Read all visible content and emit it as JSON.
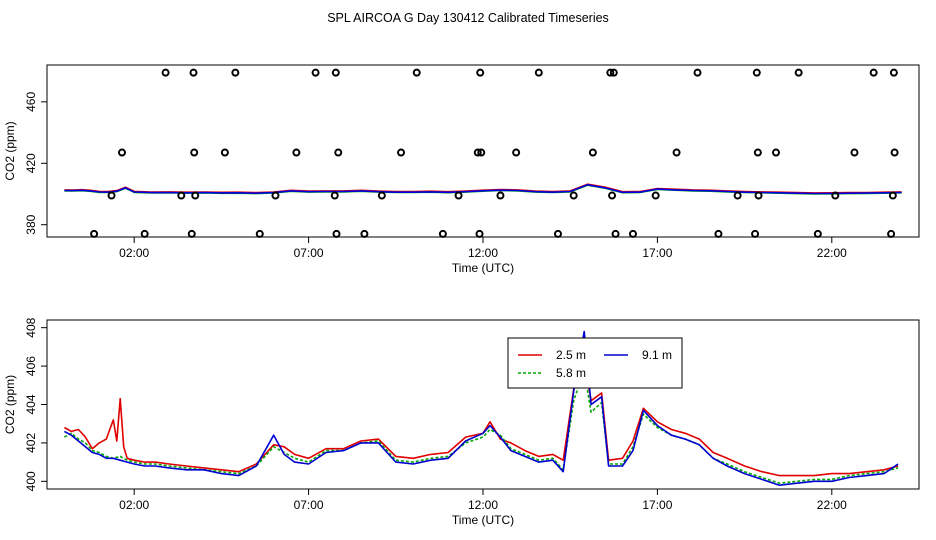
{
  "title": "SPL AIRCOA G  Day 130412  Calibrated Timeseries",
  "chart_data": [
    {
      "type": "scatter",
      "title": "",
      "xlabel": "Time (UTC)",
      "ylabel": "CO2 (ppm)",
      "xlim": [
        -0.5,
        24.5
      ],
      "ylim": [
        372,
        484
      ],
      "xticks": [
        2,
        7,
        12,
        17,
        22
      ],
      "xtick_labels": [
        "02:00",
        "07:00",
        "12:00",
        "17:00",
        "22:00"
      ],
      "yticks": [
        380,
        420,
        460
      ],
      "ytick_labels": [
        "380",
        "420",
        "460"
      ],
      "calibration_points": {
        "x": [
          0.85,
          1.35,
          1.65,
          2.3,
          2.9,
          3.35,
          3.65,
          3.7,
          3.72,
          3.75,
          4.6,
          4.9,
          5.6,
          6.05,
          6.65,
          7.2,
          7.75,
          7.78,
          7.8,
          7.85,
          8.6,
          9.1,
          9.65,
          10.1,
          10.85,
          11.3,
          11.85,
          11.9,
          11.92,
          11.95,
          12.5,
          12.95,
          13.6,
          14.15,
          14.6,
          15.15,
          15.65,
          15.7,
          15.75,
          15.8,
          16.3,
          16.95,
          17.55,
          18.15,
          18.75,
          19.3,
          19.8,
          19.85,
          19.88,
          19.9,
          20.4,
          21.05,
          21.6,
          22.1,
          22.65,
          23.2,
          23.7,
          23.75,
          23.78,
          23.8
        ],
        "y": [
          374,
          399,
          427,
          374,
          479,
          399,
          374,
          479,
          427,
          399,
          427,
          479,
          374,
          399,
          427,
          479,
          399,
          479,
          374,
          427,
          374,
          399,
          427,
          479,
          374,
          399,
          427,
          374,
          479,
          427,
          399,
          427,
          479,
          374,
          399,
          427,
          479,
          399,
          479,
          374,
          374,
          399,
          427,
          479,
          374,
          399,
          374,
          479,
          427,
          399,
          427,
          479,
          374,
          399,
          427,
          479,
          374,
          399,
          479,
          427
        ]
      },
      "series": [
        {
          "name": "2.5 m",
          "color": "#e00000",
          "offset": 0.4,
          "x": [
            0,
            0.25,
            0.5,
            0.75,
            1,
            1.25,
            1.5,
            1.75,
            2,
            2.5,
            3,
            3.5,
            4,
            4.5,
            5,
            5.5,
            6,
            6.5,
            7,
            7.5,
            8,
            8.5,
            9,
            9.5,
            10,
            10.5,
            11,
            11.5,
            12,
            12.5,
            13,
            13.5,
            14,
            14.5,
            15,
            15.5,
            16,
            16.5,
            17,
            17.5,
            18,
            18.5,
            19,
            19.5,
            20,
            20.5,
            21,
            21.5,
            22,
            22.5,
            23,
            23.5,
            24
          ],
          "values": [
            402.3,
            402.2,
            402.4,
            402,
            401.3,
            401.2,
            401.8,
            404,
            401.3,
            400.9,
            401,
            400.8,
            400.9,
            400.7,
            400.8,
            400.5,
            400.9,
            402,
            401.5,
            401.6,
            401.6,
            402,
            401.5,
            401.2,
            401.2,
            401.4,
            401.1,
            401.5,
            402.1,
            402.5,
            402.3,
            401.5,
            401.2,
            401.6,
            406,
            404,
            401.1,
            401.2,
            403.2,
            402.7,
            402.3,
            402.1,
            401.6,
            401.2,
            401,
            400.8,
            400.5,
            400.3,
            400.4,
            400.5,
            400.6,
            400.8,
            401
          ]
        },
        {
          "name": "5.8 m",
          "color": "#00b000",
          "offset": -0.25,
          "x": [
            0,
            0.25,
            0.5,
            0.75,
            1,
            1.25,
            1.5,
            1.75,
            2,
            2.5,
            3,
            3.5,
            4,
            4.5,
            5,
            5.5,
            6,
            6.5,
            7,
            7.5,
            8,
            8.5,
            9,
            9.5,
            10,
            10.5,
            11,
            11.5,
            12,
            12.5,
            13,
            13.5,
            14,
            14.5,
            15,
            15.5,
            16,
            16.5,
            17,
            17.5,
            18,
            18.5,
            19,
            19.5,
            20,
            20.5,
            21,
            21.5,
            22,
            22.5,
            23,
            23.5,
            24
          ],
          "values": [
            402.3,
            402.2,
            402.4,
            402,
            401.3,
            401.2,
            401.8,
            404,
            401.3,
            400.9,
            401,
            400.8,
            400.9,
            400.7,
            400.8,
            400.5,
            400.9,
            402,
            401.5,
            401.6,
            401.6,
            402,
            401.5,
            401.2,
            401.2,
            401.4,
            401.1,
            401.5,
            402.1,
            402.5,
            402.3,
            401.5,
            401.2,
            401.6,
            406,
            404,
            401.1,
            401.2,
            403.2,
            402.7,
            402.3,
            402.1,
            401.6,
            401.2,
            401,
            400.8,
            400.5,
            400.3,
            400.4,
            400.5,
            400.6,
            400.8,
            401
          ]
        },
        {
          "name": "9.1 m",
          "color": "#0000e0",
          "offset": 0,
          "x": [
            0,
            0.25,
            0.5,
            0.75,
            1,
            1.25,
            1.5,
            1.75,
            2,
            2.5,
            3,
            3.5,
            4,
            4.5,
            5,
            5.5,
            6,
            6.5,
            7,
            7.5,
            8,
            8.5,
            9,
            9.5,
            10,
            10.5,
            11,
            11.5,
            12,
            12.5,
            13,
            13.5,
            14,
            14.5,
            15,
            15.5,
            16,
            16.5,
            17,
            17.5,
            18,
            18.5,
            19,
            19.5,
            20,
            20.5,
            21,
            21.5,
            22,
            22.5,
            23,
            23.5,
            24
          ],
          "values": [
            402.3,
            402.2,
            402.4,
            402,
            401.3,
            401.2,
            401.8,
            404,
            401.3,
            400.9,
            401,
            400.8,
            400.9,
            400.7,
            400.8,
            400.5,
            400.9,
            402,
            401.5,
            401.6,
            401.6,
            402,
            401.5,
            401.2,
            401.2,
            401.4,
            401.1,
            401.5,
            402.1,
            402.5,
            402.3,
            401.5,
            401.2,
            401.6,
            406,
            404,
            401.1,
            401.2,
            403.2,
            402.7,
            402.3,
            402.1,
            401.6,
            401.2,
            401,
            400.8,
            400.5,
            400.3,
            400.4,
            400.5,
            400.6,
            400.8,
            401
          ]
        }
      ]
    },
    {
      "type": "line",
      "title": "",
      "xlabel": "Time (UTC)",
      "ylabel": "CO2 (ppm)",
      "xlim": [
        -0.5,
        24.5
      ],
      "ylim": [
        399.6,
        408.4
      ],
      "xticks": [
        2,
        7,
        12,
        17,
        22
      ],
      "xtick_labels": [
        "02:00",
        "07:00",
        "12:00",
        "17:00",
        "22:00"
      ],
      "yticks": [
        400,
        402,
        404,
        406,
        408
      ],
      "ytick_labels": [
        "400",
        "402",
        "404",
        "406",
        "408"
      ],
      "legend_position": "top-center",
      "series": [
        {
          "name": "2.5 m",
          "color": "#e00000",
          "dash": "",
          "x": [
            0,
            0.2,
            0.4,
            0.6,
            0.8,
            1.0,
            1.2,
            1.4,
            1.5,
            1.6,
            1.7,
            1.8,
            2.0,
            2.3,
            2.6,
            3.0,
            3.5,
            4.0,
            4.5,
            5.0,
            5.5,
            6.0,
            6.3,
            6.6,
            7.0,
            7.5,
            8.0,
            8.5,
            9.0,
            9.5,
            10.0,
            10.5,
            11.0,
            11.5,
            12.0,
            12.2,
            12.5,
            12.8,
            13.2,
            13.6,
            14.0,
            14.3,
            14.6,
            14.9,
            15.1,
            15.4,
            15.6,
            16.0,
            16.3,
            16.6,
            17.0,
            17.4,
            17.8,
            18.2,
            18.6,
            19.0,
            19.5,
            20.0,
            20.5,
            21.0,
            21.5,
            22.0,
            22.5,
            23.0,
            23.5,
            23.9
          ],
          "values": [
            402.8,
            402.6,
            402.7,
            402.3,
            401.7,
            402,
            402.2,
            403.2,
            402.1,
            404.3,
            401.8,
            401.2,
            401.1,
            401,
            401,
            400.9,
            400.8,
            400.7,
            400.6,
            400.5,
            400.9,
            401.9,
            401.8,
            401.4,
            401.2,
            401.7,
            401.7,
            402.1,
            402.2,
            401.3,
            401.2,
            401.4,
            401.5,
            402.3,
            402.5,
            403.1,
            402.2,
            402.0,
            401.6,
            401.3,
            401.4,
            401.1,
            404.8,
            406.4,
            404.2,
            404.6,
            401.1,
            401.2,
            402.1,
            403.8,
            403.1,
            402.7,
            402.5,
            402.2,
            401.5,
            401.2,
            400.8,
            400.5,
            400.3,
            400.3,
            400.3,
            400.4,
            400.4,
            400.5,
            400.6,
            400.8
          ]
        },
        {
          "name": "5.8 m",
          "color": "#00a800",
          "dash": "3,2",
          "x": [
            0,
            0.2,
            0.4,
            0.6,
            0.8,
            1.0,
            1.2,
            1.4,
            1.6,
            1.8,
            2.0,
            2.3,
            2.6,
            3.0,
            3.5,
            4.0,
            4.5,
            5.0,
            5.5,
            6.0,
            6.3,
            6.6,
            7.0,
            7.5,
            8.0,
            8.5,
            9.0,
            9.5,
            10.0,
            10.5,
            11.0,
            11.5,
            12.0,
            12.2,
            12.5,
            12.8,
            13.2,
            13.6,
            14.0,
            14.3,
            14.6,
            14.9,
            15.1,
            15.4,
            15.6,
            16.0,
            16.3,
            16.6,
            17.0,
            17.4,
            17.8,
            18.2,
            18.6,
            19.0,
            19.5,
            20.0,
            20.5,
            21.0,
            21.5,
            22.0,
            22.5,
            23.0,
            23.5,
            23.9
          ],
          "values": [
            402.3,
            402.5,
            402.2,
            402.0,
            401.6,
            401.5,
            401.3,
            401.2,
            401.3,
            401.1,
            401.0,
            400.9,
            400.9,
            400.8,
            400.7,
            400.6,
            400.5,
            400.4,
            400.8,
            401.8,
            401.5,
            401.2,
            401.0,
            401.6,
            401.6,
            402.0,
            402.1,
            401.1,
            401.0,
            401.2,
            401.3,
            402.0,
            402.3,
            402.7,
            402.4,
            401.7,
            401.4,
            401.1,
            401.2,
            400.6,
            404.2,
            405.8,
            403.6,
            404.1,
            400.9,
            400.9,
            401.8,
            403.5,
            402.8,
            402.4,
            402.2,
            401.9,
            401.2,
            400.9,
            400.5,
            400.2,
            399.9,
            400.0,
            400.1,
            400.1,
            400.3,
            400.4,
            400.5,
            400.7
          ]
        },
        {
          "name": "9.1 m",
          "color": "#0000d0",
          "dash": "",
          "x": [
            0,
            0.2,
            0.4,
            0.6,
            0.8,
            1.0,
            1.2,
            1.4,
            1.6,
            1.8,
            2.0,
            2.3,
            2.6,
            3.0,
            3.5,
            4.0,
            4.5,
            5.0,
            5.5,
            6.0,
            6.3,
            6.6,
            7.0,
            7.5,
            8.0,
            8.5,
            9.0,
            9.5,
            10.0,
            10.5,
            11.0,
            11.5,
            12.0,
            12.2,
            12.5,
            12.8,
            13.2,
            13.6,
            14.0,
            14.3,
            14.6,
            14.9,
            15.1,
            15.4,
            15.6,
            16.0,
            16.3,
            16.6,
            17.0,
            17.4,
            17.8,
            18.2,
            18.6,
            19.0,
            19.5,
            20.0,
            20.5,
            21.0,
            21.5,
            22.0,
            22.5,
            23.0,
            23.5,
            23.9
          ],
          "values": [
            402.6,
            402.4,
            402.1,
            401.8,
            401.5,
            401.4,
            401.2,
            401.2,
            401.1,
            401.0,
            400.9,
            400.8,
            400.8,
            400.7,
            400.6,
            400.6,
            400.4,
            400.3,
            400.8,
            402.4,
            401.4,
            401.0,
            400.9,
            401.5,
            401.6,
            402.0,
            402.0,
            401.0,
            400.9,
            401.1,
            401.2,
            402.1,
            402.5,
            402.9,
            402.3,
            401.6,
            401.3,
            401.0,
            401.1,
            400.5,
            404.7,
            407.8,
            404.0,
            404.4,
            400.8,
            400.8,
            401.6,
            403.7,
            402.9,
            402.4,
            402.2,
            401.9,
            401.2,
            400.8,
            400.4,
            400.1,
            399.8,
            399.9,
            400.0,
            400.0,
            400.2,
            400.3,
            400.4,
            400.9
          ]
        }
      ]
    }
  ]
}
